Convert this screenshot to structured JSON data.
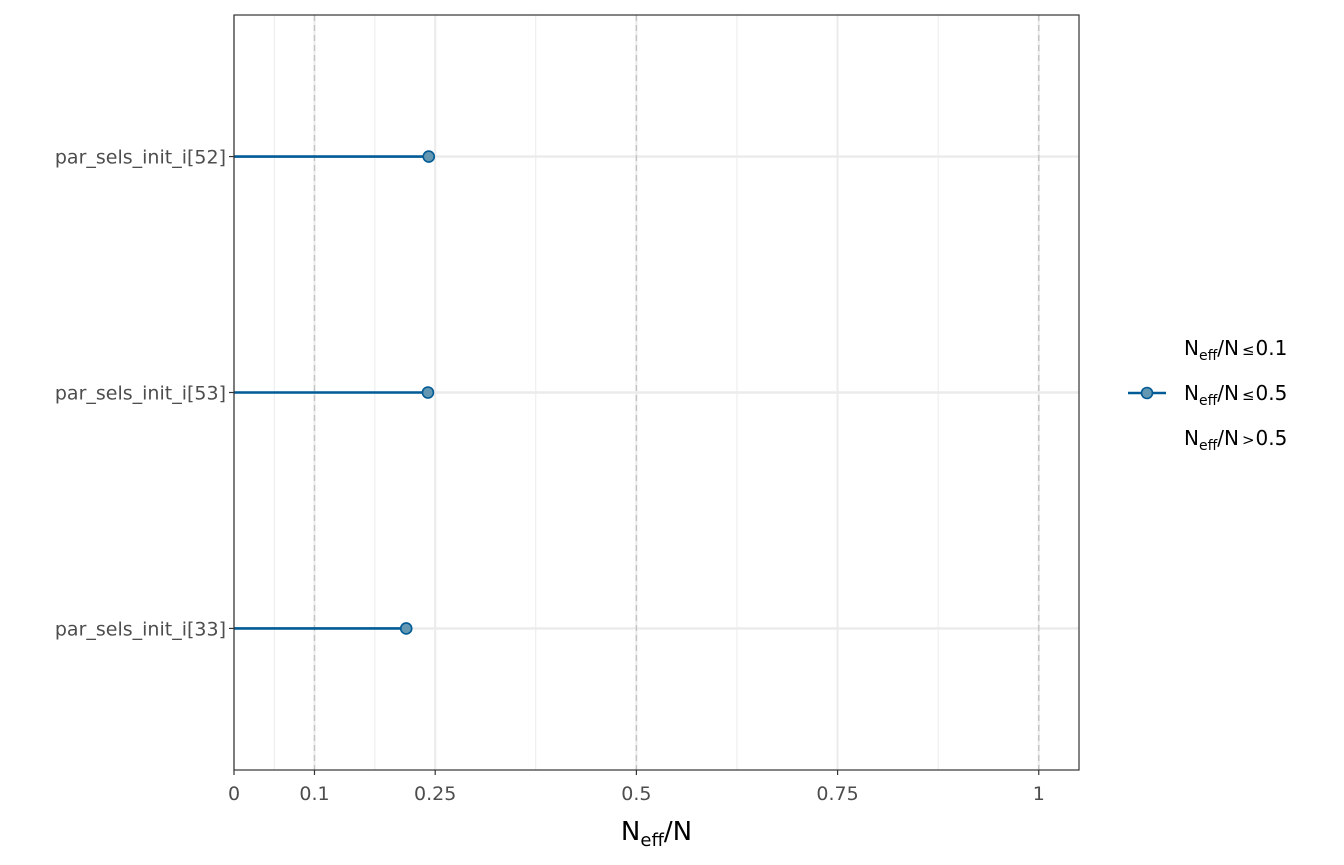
{
  "chart_data": {
    "type": "lollipop",
    "categories": [
      "par_sels_init_i[52]",
      "par_sels_init_i[53]",
      "par_sels_init_i[33]"
    ],
    "values": [
      0.242,
      0.241,
      0.214
    ],
    "x_ticks": [
      0,
      0.1,
      0.25,
      0.5,
      0.75,
      1
    ],
    "x_tick_labels": [
      "0",
      "0.1",
      "0.25",
      "0.5",
      "0.75",
      "1"
    ],
    "x_minor_gridlines": [
      0.05,
      0.175,
      0.375,
      0.625,
      0.875
    ],
    "reference_lines": [
      0.1,
      0.5,
      1
    ],
    "xlim": [
      0,
      1.05
    ],
    "xlabel": {
      "main": "N",
      "sub": "eff",
      "rest": "/N"
    },
    "grid": true,
    "legend_position": "right",
    "legend": [
      {
        "main": "N",
        "sub": "eff",
        "rest": "/N",
        "op": "≤",
        "value": "0.1",
        "color": "#011f4b",
        "marker": false
      },
      {
        "main": "N",
        "sub": "eff",
        "rest": "/N",
        "op": "≤",
        "value": "0.5",
        "color": "#005b96",
        "fill": "#6497b1",
        "marker": true
      },
      {
        "main": "N",
        "sub": "eff",
        "rest": "/N",
        "op": ">",
        "value": "0.5",
        "color": "#b3cde0",
        "marker": false
      }
    ],
    "line_color": "#005b96",
    "point_fill": "#6497b1",
    "point_stroke": "#005b96"
  }
}
